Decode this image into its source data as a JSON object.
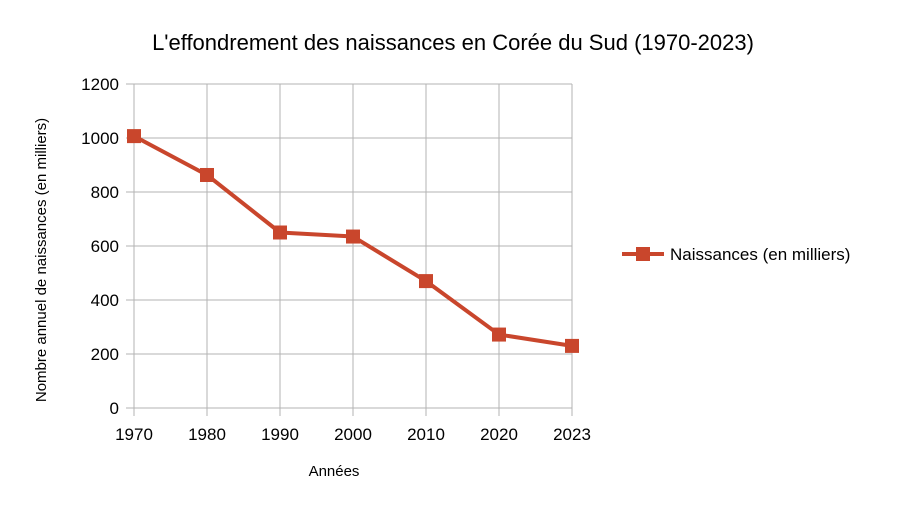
{
  "chart_data": {
    "type": "line",
    "title": "L'effondrement des naissances en Corée du Sud (1970-2023)",
    "xlabel": "Années",
    "ylabel": "Nombre annuel de naissances (en milliers)",
    "categories": [
      "1970",
      "1980",
      "1990",
      "2000",
      "2010",
      "2020",
      "2023"
    ],
    "series": [
      {
        "name": "Naissances (en milliers)",
        "values": [
          1007,
          863,
          650,
          635,
          470,
          272,
          230
        ],
        "color": "#c9462c"
      }
    ],
    "ylim": [
      0,
      1200
    ],
    "yticks": [
      "0",
      "200",
      "400",
      "600",
      "800",
      "1000",
      "1200"
    ],
    "grid": true,
    "legend_position": "right",
    "marker": "square"
  }
}
